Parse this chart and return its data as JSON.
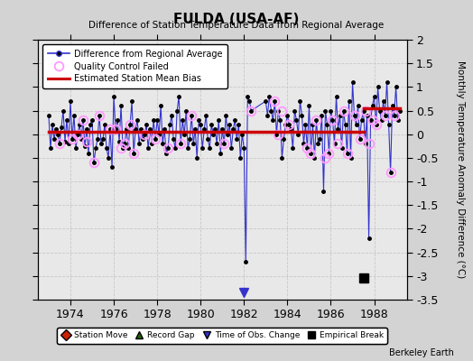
{
  "title": "FULDA (USA-AF)",
  "subtitle": "Difference of Station Temperature Data from Regional Average",
  "ylabel": "Monthly Temperature Anomaly Difference (°C)",
  "ylim": [
    -3.5,
    2.0
  ],
  "xlim": [
    1972.5,
    1989.5
  ],
  "xticks": [
    1974,
    1976,
    1978,
    1980,
    1982,
    1984,
    1986,
    1988
  ],
  "yticks": [
    -3.5,
    -3,
    -2.5,
    -2,
    -1.5,
    -1,
    -0.5,
    0,
    0.5,
    1,
    1.5,
    2
  ],
  "ytick_labels": [
    "-3.5",
    "-3",
    "-2.5",
    "-2",
    "-1.5",
    "-1",
    "-0.5",
    "0",
    "0.5",
    "1",
    "1.5",
    "2"
  ],
  "bias_line_y_segment1": 0.05,
  "bias_line_y_segment2": 0.55,
  "bias_break_x": 1987.5,
  "background_color": "#d3d3d3",
  "plot_bg_color": "#e8e8e8",
  "line_color": "#3333cc",
  "bias_color": "#cc0000",
  "qc_color": "#ff99ff",
  "time_series_x": [
    1973.0,
    1973.083,
    1973.167,
    1973.25,
    1973.333,
    1973.417,
    1973.5,
    1973.583,
    1973.667,
    1973.75,
    1973.833,
    1973.917,
    1974.0,
    1974.083,
    1974.167,
    1974.25,
    1974.333,
    1974.417,
    1974.5,
    1974.583,
    1974.667,
    1974.75,
    1974.833,
    1974.917,
    1975.0,
    1975.083,
    1975.167,
    1975.25,
    1975.333,
    1975.417,
    1975.5,
    1975.583,
    1975.667,
    1975.75,
    1975.833,
    1975.917,
    1976.0,
    1976.083,
    1976.167,
    1976.25,
    1976.333,
    1976.417,
    1976.5,
    1976.583,
    1976.667,
    1976.75,
    1976.833,
    1976.917,
    1977.0,
    1977.083,
    1977.167,
    1977.25,
    1977.333,
    1977.417,
    1977.5,
    1977.583,
    1977.667,
    1977.75,
    1977.833,
    1977.917,
    1978.0,
    1978.083,
    1978.167,
    1978.25,
    1978.333,
    1978.417,
    1978.5,
    1978.583,
    1978.667,
    1978.75,
    1978.833,
    1978.917,
    1979.0,
    1979.083,
    1979.167,
    1979.25,
    1979.333,
    1979.417,
    1979.5,
    1979.583,
    1979.667,
    1979.75,
    1979.833,
    1979.917,
    1980.0,
    1980.083,
    1980.167,
    1980.25,
    1980.333,
    1980.417,
    1980.5,
    1980.583,
    1980.667,
    1980.75,
    1980.833,
    1980.917,
    1981.0,
    1981.083,
    1981.167,
    1981.25,
    1981.333,
    1981.417,
    1981.5,
    1981.583,
    1981.667,
    1981.75,
    1981.833,
    1981.917,
    1982.0,
    1982.083,
    1982.167,
    1982.25,
    1982.333,
    1983.0,
    1983.083,
    1983.167,
    1983.25,
    1983.333,
    1983.417,
    1983.5,
    1983.583,
    1983.667,
    1983.75,
    1983.833,
    1983.917,
    1984.0,
    1984.083,
    1984.167,
    1984.25,
    1984.333,
    1984.417,
    1984.5,
    1984.583,
    1984.667,
    1984.75,
    1984.833,
    1984.917,
    1985.0,
    1985.083,
    1985.167,
    1985.25,
    1985.333,
    1985.417,
    1985.5,
    1985.583,
    1985.667,
    1985.75,
    1985.833,
    1985.917,
    1986.0,
    1986.083,
    1986.167,
    1986.25,
    1986.333,
    1986.417,
    1986.5,
    1986.583,
    1986.667,
    1986.75,
    1986.833,
    1986.917,
    1987.0,
    1987.083,
    1987.167,
    1987.25,
    1987.333,
    1987.417,
    1987.5,
    1987.583,
    1987.667,
    1987.75,
    1987.833,
    1987.917,
    1988.0,
    1988.083,
    1988.167,
    1988.25,
    1988.333,
    1988.417,
    1988.5,
    1988.583,
    1988.667,
    1988.75,
    1988.833,
    1988.917,
    1989.0,
    1989.083,
    1989.167
  ],
  "time_series_y": [
    0.4,
    -0.3,
    0.2,
    -0.1,
    0.1,
    0.0,
    -0.2,
    0.15,
    0.5,
    -0.15,
    0.3,
    -0.2,
    0.7,
    -0.1,
    0.4,
    -0.3,
    0.0,
    0.2,
    -0.1,
    0.3,
    -0.25,
    0.1,
    -0.4,
    0.2,
    0.3,
    -0.6,
    -0.3,
    -0.1,
    0.4,
    -0.2,
    -0.1,
    0.2,
    -0.3,
    -0.5,
    0.1,
    -0.7,
    0.8,
    0.1,
    0.3,
    -0.15,
    0.6,
    -0.3,
    -0.2,
    0.1,
    -0.3,
    0.2,
    0.7,
    -0.4,
    0.1,
    0.3,
    -0.2,
    0.1,
    -0.1,
    0.0,
    0.2,
    -0.3,
    0.1,
    -0.2,
    0.3,
    -0.1,
    0.3,
    0.0,
    0.6,
    -0.2,
    0.1,
    -0.4,
    -0.3,
    0.2,
    0.4,
    -0.1,
    -0.3,
    0.5,
    0.8,
    -0.2,
    0.3,
    0.0,
    0.5,
    -0.3,
    -0.1,
    0.4,
    -0.2,
    0.1,
    -0.5,
    0.3,
    0.2,
    -0.3,
    0.1,
    0.4,
    -0.1,
    -0.3,
    0.2,
    0.0,
    0.1,
    -0.2,
    0.3,
    -0.4,
    0.1,
    -0.2,
    0.4,
    0.0,
    0.2,
    -0.3,
    0.1,
    0.3,
    -0.1,
    0.2,
    -0.5,
    0.0,
    -0.3,
    -2.7,
    0.8,
    0.7,
    0.5,
    0.7,
    0.4,
    0.8,
    0.5,
    0.3,
    0.7,
    0.0,
    0.5,
    0.3,
    -0.5,
    -0.1,
    0.2,
    0.4,
    0.2,
    0.1,
    -0.3,
    0.5,
    0.3,
    0.0,
    0.7,
    0.4,
    -0.2,
    0.2,
    -0.3,
    0.6,
    -0.4,
    0.2,
    -0.5,
    0.3,
    -0.2,
    -0.1,
    0.4,
    -1.2,
    0.5,
    0.2,
    -0.4,
    0.5,
    0.3,
    -0.2,
    0.8,
    0.1,
    0.4,
    -0.3,
    0.5,
    0.2,
    -0.4,
    0.7,
    -0.5,
    1.1,
    0.4,
    0.2,
    0.6,
    -0.1,
    0.3,
    0.5,
    -0.2,
    0.4,
    -2.2,
    0.3,
    0.6,
    0.8,
    0.2,
    1.0,
    0.5,
    0.3,
    0.7,
    0.4,
    1.1,
    0.2,
    -0.8,
    0.6,
    0.4,
    1.0,
    0.3,
    0.5
  ],
  "qc_failed_x": [
    1973.5,
    1974.083,
    1974.333,
    1974.583,
    1974.75,
    1975.083,
    1975.333,
    1975.833,
    1976.083,
    1976.333,
    1976.5,
    1976.75,
    1976.917,
    1977.417,
    1977.917,
    1978.5,
    1979.083,
    1979.583,
    1981.083,
    1982.333,
    1983.417,
    1983.583,
    1983.75,
    1984.083,
    1984.917,
    1985.083,
    1985.333,
    1985.75,
    1985.917,
    1986.083,
    1986.333,
    1986.583,
    1986.75,
    1987.083,
    1987.333,
    1987.583,
    1987.75,
    1987.917,
    1988.083,
    1988.5,
    1988.75,
    1988.917
  ],
  "qc_failed_y": [
    -0.2,
    -0.1,
    0.0,
    0.3,
    -0.15,
    -0.6,
    0.4,
    0.1,
    0.1,
    -0.3,
    -0.2,
    0.2,
    -0.4,
    0.0,
    -0.1,
    -0.3,
    -0.2,
    0.4,
    -0.2,
    0.5,
    0.7,
    0.0,
    0.5,
    0.2,
    -0.3,
    -0.4,
    0.3,
    -0.5,
    -0.4,
    0.3,
    -0.2,
    0.5,
    -0.4,
    0.4,
    -0.1,
    0.5,
    -0.2,
    0.3,
    0.2,
    0.4,
    -0.8,
    0.4
  ],
  "obs_change_x": 1982.0,
  "obs_change_y": -3.35,
  "empirical_break_x": 1987.5,
  "empirical_break_y": -3.05
}
